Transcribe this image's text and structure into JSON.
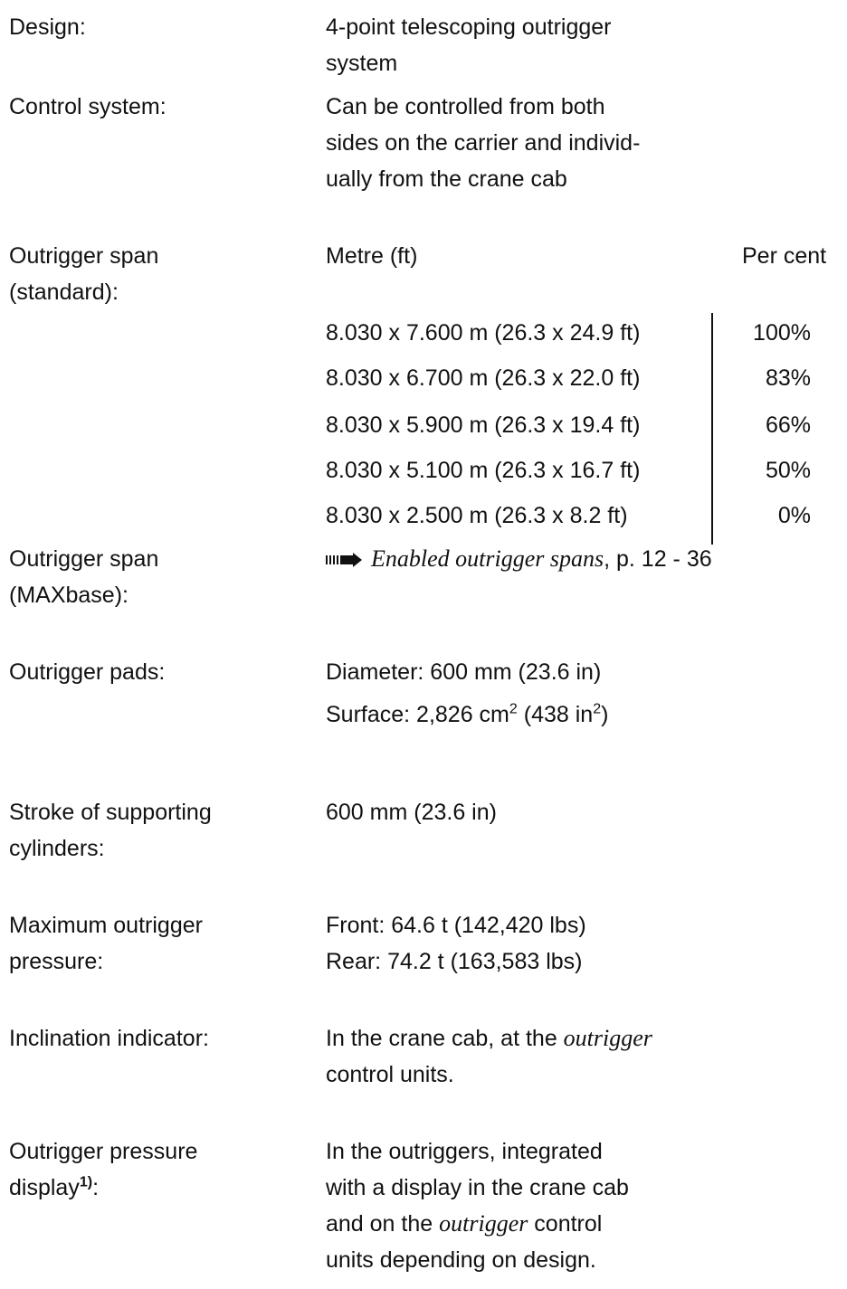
{
  "design": {
    "label": "Design:",
    "value": [
      "4-point telescoping outrigger",
      "system"
    ]
  },
  "control": {
    "label": "Control system:",
    "value": [
      "Can be controlled from both",
      "sides on the carrier and individ-",
      "ually from the crane cab"
    ]
  },
  "span_standard": {
    "label": [
      "Outrigger span",
      "(standard):"
    ],
    "col1": "Metre (ft)",
    "col2": "Per cent",
    "rows": [
      [
        "8.030 x 7.600 m (26.3 x 24.9 ft)",
        "100%"
      ],
      [
        "8.030 x 6.700 m (26.3 x 22.0 ft)",
        "83%"
      ],
      [
        "8.030 x 5.900 m (26.3 x 19.4 ft)",
        "66%"
      ],
      [
        "8.030 x 5.100 m (26.3 x 16.7 ft)",
        "50%"
      ],
      [
        "8.030 x 2.500 m (26.3 x 8.2 ft)",
        "0%"
      ]
    ]
  },
  "span_maxbase": {
    "label": [
      "Outrigger span",
      "(MAXbase):"
    ],
    "link": "Enabled outrigger spans",
    "ref": ", p. 12 - 36"
  },
  "pads": {
    "label": "Outrigger pads:",
    "diameter": "Diameter: 600 mm (23.6 in)",
    "surface": [
      "Surface: 2,826 cm",
      "2",
      " (438 in",
      "2",
      ")"
    ]
  },
  "stroke": {
    "label": [
      "Stroke of supporting",
      "cylinders:"
    ],
    "value": "600 mm (23.6 in)"
  },
  "pressure": {
    "label": [
      "Maximum outrigger",
      "pressure:"
    ],
    "value": [
      "Front: 64.6 t (142,420 lbs)",
      "Rear: 74.2 t (163,583 lbs)"
    ]
  },
  "inclination": {
    "label": "Inclination indicator:",
    "value": [
      [
        "In the crane cab, at the ",
        "outrigger"
      ],
      "control units."
    ]
  },
  "display": {
    "label": [
      "Outrigger pressure",
      "display",
      "1)",
      ":"
    ],
    "value": [
      "In the outriggers, integrated",
      "with a display in the crane cab",
      [
        "and on the ",
        "outrigger",
        " control"
      ],
      "units depending on design."
    ]
  }
}
